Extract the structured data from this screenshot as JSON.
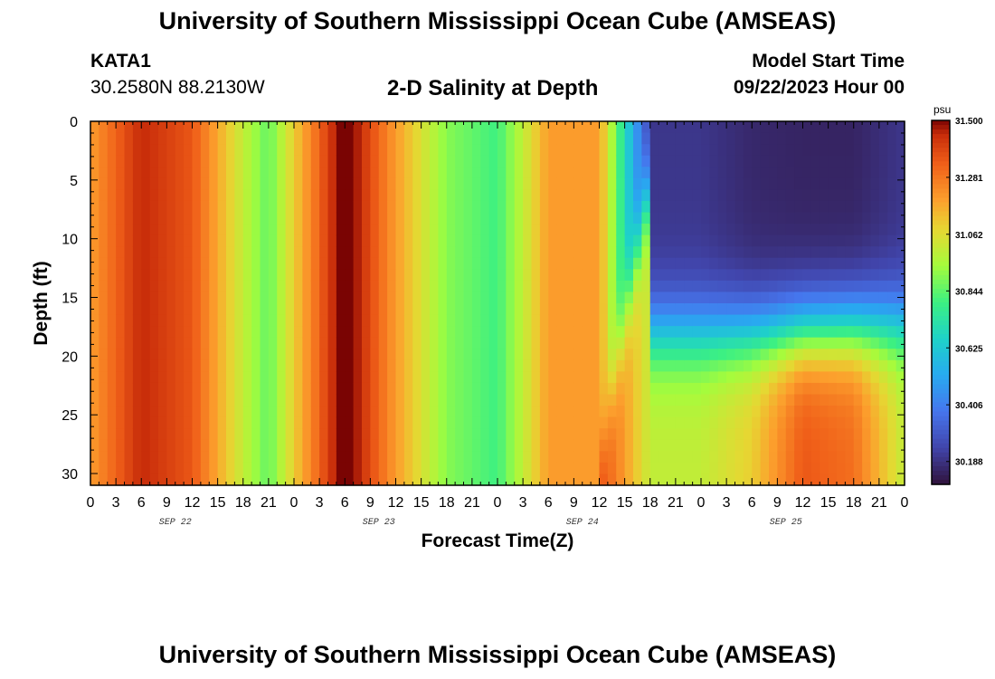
{
  "header": {
    "title": "University of Southern Mississippi Ocean Cube (AMSEAS)",
    "station": "KATA1",
    "coordinates": "30.2580N  88.2130W",
    "subtitle": "2-D Salinity at Depth",
    "model_start_label": "Model Start Time",
    "model_start_value": "09/22/2023 Hour 00"
  },
  "footer": {
    "title": "University of Southern Mississippi Ocean Cube (AMSEAS)"
  },
  "chart_data": {
    "type": "heatmap",
    "xlabel": "Forecast Time(Z)",
    "ylabel": "Depth (ft)",
    "x_tick_labels": [
      "0",
      "3",
      "6",
      "9",
      "12",
      "15",
      "18",
      "21",
      "0",
      "3",
      "6",
      "9",
      "12",
      "15",
      "18",
      "21",
      "0",
      "3",
      "6",
      "9",
      "12",
      "15",
      "18",
      "21",
      "0",
      "3",
      "6",
      "9",
      "12",
      "15",
      "18",
      "21",
      "0"
    ],
    "day_labels": [
      "SEP 22",
      "SEP 23",
      "SEP 24",
      "SEP 25"
    ],
    "y_ticks": [
      0,
      5,
      10,
      15,
      20,
      25,
      30
    ],
    "xlim_hours": [
      0,
      96
    ],
    "ylim_ft": [
      0,
      31
    ],
    "colorbar": {
      "unit": "psu",
      "min": 30.1,
      "max": 31.5,
      "tick_labels": [
        "31.500",
        "31.281",
        "31.062",
        "30.844",
        "30.625",
        "30.406",
        "30.188"
      ]
    },
    "salinity_psu_surface_by_hour": {
      "hours": [
        0,
        6,
        12,
        18,
        21,
        24,
        30,
        36,
        42,
        48,
        54,
        60,
        63,
        66,
        72,
        78,
        84,
        90,
        96
      ],
      "values": [
        31.2,
        31.45,
        31.35,
        31.0,
        30.85,
        31.1,
        31.55,
        31.2,
        30.9,
        30.8,
        31.2,
        31.2,
        30.7,
        30.2,
        30.2,
        30.16,
        30.15,
        30.15,
        30.2
      ]
    },
    "salinity_psu_bottom_by_hour": {
      "hours": [
        0,
        6,
        12,
        18,
        21,
        24,
        30,
        36,
        42,
        48,
        54,
        60,
        66,
        72,
        78,
        84,
        90,
        96
      ],
      "values": [
        31.2,
        31.45,
        31.35,
        31.0,
        30.85,
        31.1,
        31.55,
        31.2,
        30.9,
        30.8,
        31.2,
        31.4,
        31.0,
        31.0,
        31.1,
        31.35,
        31.3,
        31.0
      ]
    }
  }
}
